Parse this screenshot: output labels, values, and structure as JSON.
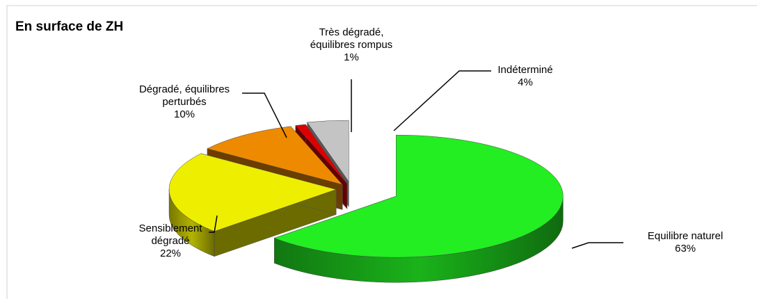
{
  "chart_data": {
    "type": "pie",
    "title": "En surface de ZH",
    "categories": [
      "Equilibre naturel",
      "Sensiblement dégradé",
      "Dégradé, équilibres perturbés",
      "Très dégradé, équilibres rompus",
      "Indéterminé"
    ],
    "values": [
      63,
      22,
      10,
      1,
      4
    ],
    "value_labels": [
      "63%",
      "22%",
      "10%",
      "1%",
      "4%"
    ],
    "colors": [
      "#22ee22",
      "#eeee00",
      "#ee8a00",
      "#dd0000",
      "#c4c4c4"
    ]
  }
}
